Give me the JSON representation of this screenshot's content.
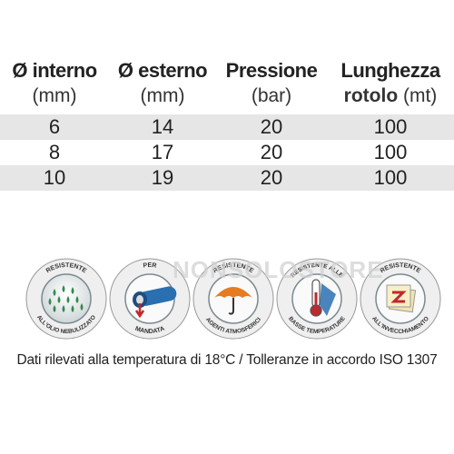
{
  "table": {
    "headers": [
      {
        "title": "Ø interno",
        "unit": "(mm)"
      },
      {
        "title": "Ø esterno",
        "unit": "(mm)"
      },
      {
        "title": "Pressione",
        "unit": "(bar)"
      },
      {
        "title": "Lunghezza",
        "unit_bold": "rotolo",
        "unit": " (mt)"
      }
    ],
    "rows": [
      [
        "6",
        "14",
        "20",
        "100"
      ],
      [
        "8",
        "17",
        "20",
        "100"
      ],
      [
        "10",
        "19",
        "20",
        "100"
      ]
    ]
  },
  "badges": [
    {
      "icon": "oil-mist-drops-icon",
      "top_text": "RESISTENTE",
      "bottom_text": "ALL'OLIO NEBULIZZATO"
    },
    {
      "icon": "pressure-hose-icon",
      "top_text": "PER",
      "bottom_text": "MANDATA"
    },
    {
      "icon": "umbrella-icon",
      "top_text": "RESISTENTE",
      "bottom_text": "AGENTI ATMOSFERICI"
    },
    {
      "icon": "thermometer-icon",
      "top_text": "RESISTENTE ALLE",
      "bottom_text": "BASSE TEMPERATURE"
    },
    {
      "icon": "aging-calendar-icon",
      "top_text": "RESISTENTE",
      "bottom_text": "ALL'INVECCHIAMENTO"
    }
  ],
  "watermark": "NONSOLOSTORE",
  "note": "Dati rilevati  alla temperatura di 18°C / Tolleranze in accordo ISO 1307"
}
